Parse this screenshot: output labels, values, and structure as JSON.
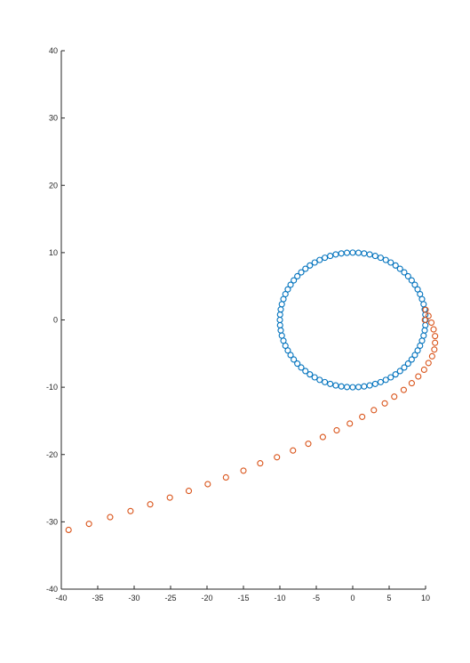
{
  "chart_data": {
    "type": "scatter",
    "title": "",
    "xlabel": "",
    "ylabel": "",
    "xlim": [
      -40,
      10
    ],
    "ylim": [
      -40,
      40
    ],
    "xticks": [
      -40,
      -35,
      -30,
      -25,
      -20,
      -15,
      -10,
      -5,
      0,
      5,
      10
    ],
    "yticks": [
      -40,
      -30,
      -20,
      -10,
      0,
      10,
      20,
      30,
      40
    ],
    "grid": false,
    "legend": "none",
    "marker": "circle-open",
    "series": [
      {
        "color": "#0072BD",
        "description": "circle of radius 10 centered at origin, 80 points",
        "points": [
          [
            10.0,
            0.0
          ],
          [
            9.97,
            0.79
          ],
          [
            9.88,
            1.56
          ],
          [
            9.73,
            2.33
          ],
          [
            9.51,
            3.09
          ],
          [
            9.24,
            3.83
          ],
          [
            8.91,
            4.54
          ],
          [
            8.53,
            5.22
          ],
          [
            8.09,
            5.88
          ],
          [
            7.6,
            6.49
          ],
          [
            7.07,
            7.07
          ],
          [
            6.49,
            7.6
          ],
          [
            5.88,
            8.09
          ],
          [
            5.22,
            8.53
          ],
          [
            4.54,
            8.91
          ],
          [
            3.83,
            9.24
          ],
          [
            3.09,
            9.51
          ],
          [
            2.33,
            9.73
          ],
          [
            1.56,
            9.88
          ],
          [
            0.79,
            9.97
          ],
          [
            0.0,
            10.0
          ],
          [
            -0.79,
            9.97
          ],
          [
            -1.56,
            9.88
          ],
          [
            -2.33,
            9.73
          ],
          [
            -3.09,
            9.51
          ],
          [
            -3.83,
            9.24
          ],
          [
            -4.54,
            8.91
          ],
          [
            -5.22,
            8.53
          ],
          [
            -5.88,
            8.09
          ],
          [
            -6.49,
            7.6
          ],
          [
            -7.07,
            7.07
          ],
          [
            -7.6,
            6.49
          ],
          [
            -8.09,
            5.88
          ],
          [
            -8.53,
            5.22
          ],
          [
            -8.91,
            4.54
          ],
          [
            -9.24,
            3.83
          ],
          [
            -9.51,
            3.09
          ],
          [
            -9.73,
            2.33
          ],
          [
            -9.88,
            1.56
          ],
          [
            -9.97,
            0.79
          ],
          [
            -10.0,
            0.0
          ],
          [
            -9.97,
            -0.79
          ],
          [
            -9.88,
            -1.56
          ],
          [
            -9.73,
            -2.33
          ],
          [
            -9.51,
            -3.09
          ],
          [
            -9.24,
            -3.83
          ],
          [
            -8.91,
            -4.54
          ],
          [
            -8.53,
            -5.22
          ],
          [
            -8.09,
            -5.88
          ],
          [
            -7.6,
            -6.49
          ],
          [
            -7.07,
            -7.07
          ],
          [
            -6.49,
            -7.6
          ],
          [
            -5.88,
            -8.09
          ],
          [
            -5.22,
            -8.53
          ],
          [
            -4.54,
            -8.91
          ],
          [
            -3.83,
            -9.24
          ],
          [
            -3.09,
            -9.51
          ],
          [
            -2.33,
            -9.73
          ],
          [
            -1.56,
            -9.88
          ],
          [
            -0.79,
            -9.97
          ],
          [
            0.0,
            -10.0
          ],
          [
            0.79,
            -9.97
          ],
          [
            1.56,
            -9.88
          ],
          [
            2.33,
            -9.73
          ],
          [
            3.09,
            -9.51
          ],
          [
            3.83,
            -9.24
          ],
          [
            4.54,
            -8.91
          ],
          [
            5.22,
            -8.53
          ],
          [
            5.88,
            -8.09
          ],
          [
            6.49,
            -7.6
          ],
          [
            7.07,
            -7.07
          ],
          [
            7.6,
            -6.49
          ],
          [
            8.09,
            -5.88
          ],
          [
            8.53,
            -5.22
          ],
          [
            8.91,
            -4.54
          ],
          [
            9.24,
            -3.83
          ],
          [
            9.51,
            -3.09
          ],
          [
            9.73,
            -2.33
          ],
          [
            9.88,
            -1.56
          ],
          [
            9.97,
            -0.79
          ]
        ]
      },
      {
        "color": "#D95319",
        "description": "parabola-like curve opening to the left, vertex near (9.9, 0)",
        "points": [
          [
            -39.0,
            -31.2
          ],
          [
            -36.2,
            -30.3
          ],
          [
            -33.3,
            -29.3
          ],
          [
            -30.5,
            -28.4
          ],
          [
            -27.8,
            -27.4
          ],
          [
            -25.1,
            -26.4
          ],
          [
            -22.5,
            -25.4
          ],
          [
            -19.9,
            -24.4
          ],
          [
            -17.4,
            -23.4
          ],
          [
            -15.0,
            -22.4
          ],
          [
            -12.7,
            -21.3
          ],
          [
            -10.4,
            -20.4
          ],
          [
            -8.2,
            -19.4
          ],
          [
            -6.1,
            -18.4
          ],
          [
            -4.1,
            -17.4
          ],
          [
            -2.2,
            -16.4
          ],
          [
            -0.4,
            -15.4
          ],
          [
            1.3,
            -14.4
          ],
          [
            2.9,
            -13.4
          ],
          [
            4.4,
            -12.4
          ],
          [
            5.7,
            -11.4
          ],
          [
            7.0,
            -10.4
          ],
          [
            8.1,
            -9.4
          ],
          [
            9.0,
            -8.4
          ],
          [
            9.8,
            -7.4
          ],
          [
            10.4,
            -6.4
          ],
          [
            10.9,
            -5.4
          ],
          [
            11.2,
            -4.4
          ],
          [
            11.3,
            -3.4
          ],
          [
            11.3,
            -2.4
          ],
          [
            11.1,
            -1.4
          ],
          [
            10.8,
            -0.4
          ],
          [
            10.4,
            0.6
          ],
          [
            10.0,
            1.5
          ],
          [
            9.9,
            0.0
          ]
        ]
      }
    ]
  }
}
